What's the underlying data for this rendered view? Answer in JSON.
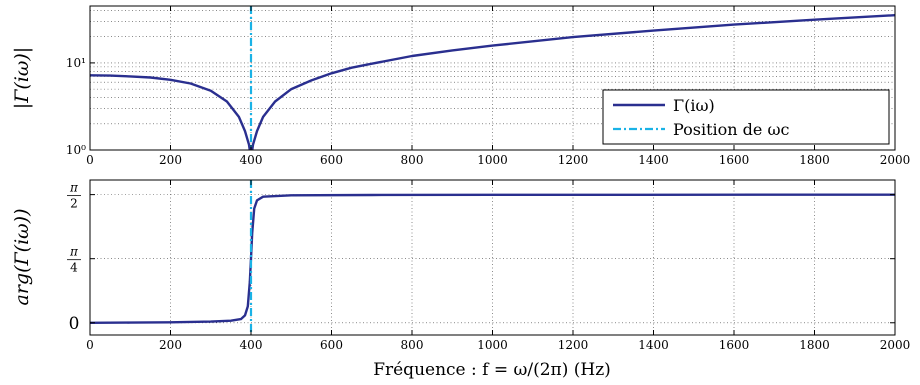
{
  "chart_data": [
    {
      "type": "line",
      "ylabel": "|Γ(iω)|",
      "yscale": "log",
      "ylim": [
        1,
        45
      ],
      "xlim": [
        0,
        2000
      ],
      "x_ticks": [
        "0",
        "200",
        "400",
        "600",
        "800",
        "1000",
        "1200",
        "1400",
        "1600",
        "1800",
        "2000"
      ],
      "y_ticks": [
        "10⁰",
        "10¹"
      ],
      "grid": true,
      "legend_position": "lower-right",
      "series": [
        {
          "name": "Γ(iω)",
          "color": "#2a2f8f",
          "points": [
            [
              0,
              7.2
            ],
            [
              50,
              7.15
            ],
            [
              100,
              7.0
            ],
            [
              150,
              6.8
            ],
            [
              200,
              6.4
            ],
            [
              250,
              5.8
            ],
            [
              300,
              4.8
            ],
            [
              340,
              3.6
            ],
            [
              370,
              2.4
            ],
            [
              385,
              1.65
            ],
            [
              395,
              1.15
            ],
            [
              400,
              0.8
            ],
            [
              405,
              1.15
            ],
            [
              415,
              1.65
            ],
            [
              430,
              2.4
            ],
            [
              460,
              3.6
            ],
            [
              500,
              5.0
            ],
            [
              550,
              6.3
            ],
            [
              600,
              7.6
            ],
            [
              650,
              8.8
            ],
            [
              700,
              9.8
            ],
            [
              800,
              12.0
            ],
            [
              900,
              13.9
            ],
            [
              1000,
              15.8
            ],
            [
              1200,
              19.8
            ],
            [
              1400,
              23.5
            ],
            [
              1600,
              27.5
            ],
            [
              1800,
              31.3
            ],
            [
              2000,
              35.3
            ]
          ]
        },
        {
          "name": "Position de ωc",
          "color": "#1ab2e6",
          "style": "dash-dot",
          "vertical_x": 400
        }
      ]
    },
    {
      "type": "line",
      "ylabel": "arg(Γ(iω))",
      "xlabel": "Fréquence : f = ω/(2π) (Hz)",
      "ylim": [
        -0.15,
        1.75
      ],
      "xlim": [
        0,
        2000
      ],
      "x_ticks": [
        "0",
        "200",
        "400",
        "600",
        "800",
        "1000",
        "1200",
        "1400",
        "1600",
        "1800",
        "2000"
      ],
      "y_ticks": [
        {
          "value": 0,
          "label": "0"
        },
        {
          "value": 0.7854,
          "label": "π/4"
        },
        {
          "value": 1.5708,
          "label": "π/2"
        }
      ],
      "grid": true,
      "series": [
        {
          "name": "Γ(iω)",
          "color": "#2a2f8f",
          "points": [
            [
              0,
              0
            ],
            [
              100,
              0.002
            ],
            [
              200,
              0.006
            ],
            [
              300,
              0.014
            ],
            [
              350,
              0.025
            ],
            [
              375,
              0.045
            ],
            [
              385,
              0.09
            ],
            [
              392,
              0.2
            ],
            [
              397,
              0.5
            ],
            [
              400,
              0.79
            ],
            [
              403,
              1.1
            ],
            [
              408,
              1.4
            ],
            [
              415,
              1.5
            ],
            [
              430,
              1.545
            ],
            [
              500,
              1.563
            ],
            [
              700,
              1.566
            ],
            [
              1000,
              1.568
            ],
            [
              2000,
              1.57
            ]
          ]
        },
        {
          "name": "Position de ωc",
          "color": "#1ab2e6",
          "style": "dash-dot",
          "vertical_x": 400
        }
      ]
    }
  ]
}
